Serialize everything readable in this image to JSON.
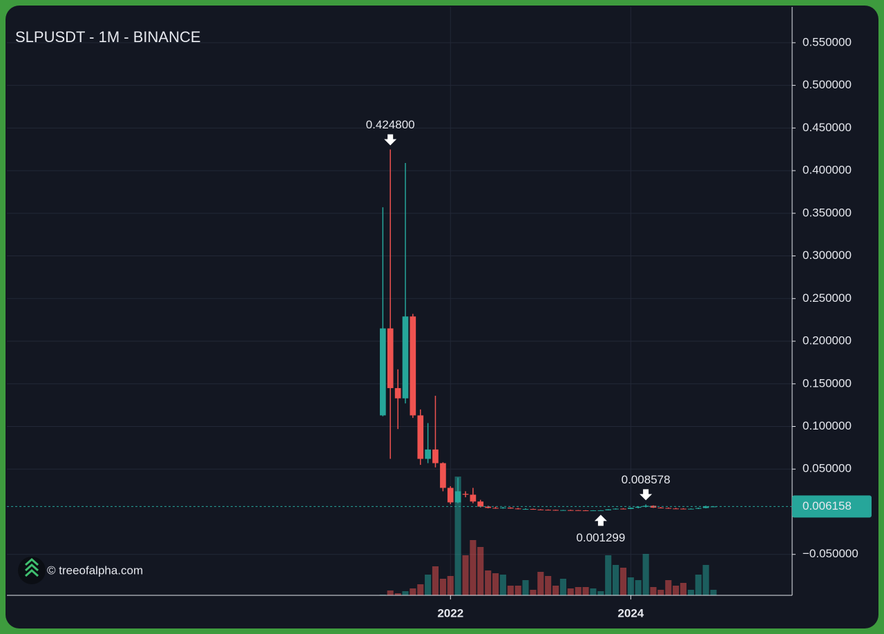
{
  "chart_data": {
    "type": "candlestick",
    "title": "SLPUSDT - 1M - BINANCE",
    "watermark": "© treeofalpha.com",
    "x": [
      2021.25,
      2021.333,
      2021.417,
      2021.5,
      2021.583,
      2021.667,
      2021.75,
      2021.833,
      2021.917,
      2022,
      2022.083,
      2022.167,
      2022.25,
      2022.333,
      2022.417,
      2022.5,
      2022.583,
      2022.667,
      2022.75,
      2022.833,
      2022.917,
      2023,
      2023.083,
      2023.167,
      2023.25,
      2023.333,
      2023.417,
      2023.5,
      2023.583,
      2023.667,
      2023.75,
      2023.833,
      2023.917,
      2024,
      2024.083,
      2024.167,
      2024.25,
      2024.333,
      2024.417,
      2024.5,
      2024.583,
      2024.667,
      2024.75,
      2024.833,
      2024.917
    ],
    "open": [
      0.113,
      0.215,
      0.145,
      0.133,
      0.229,
      0.113,
      0.062,
      0.073,
      0.057,
      0.028,
      0.011,
      0.021,
      0.02,
      0.012,
      0.006,
      0.0045,
      0.0042,
      0.0048,
      0.0038,
      0.003,
      0.0032,
      0.0026,
      0.0023,
      0.0021,
      0.0017,
      0.0019,
      0.0018,
      0.0016,
      0.0015,
      0.0016,
      0.0017,
      0.0028,
      0.0036,
      0.0033,
      0.0047,
      0.0058,
      0.007,
      0.0048,
      0.0044,
      0.0038,
      0.0036,
      0.0033,
      0.0035,
      0.0044,
      0.0059
    ],
    "high": [
      0.357,
      0.4248,
      0.167,
      0.409,
      0.232,
      0.12,
      0.104,
      0.136,
      0.058,
      0.03,
      0.04,
      0.024,
      0.028,
      0.014,
      0.007,
      0.006,
      0.0058,
      0.0052,
      0.0045,
      0.004,
      0.0036,
      0.0031,
      0.0027,
      0.0024,
      0.0022,
      0.0024,
      0.002,
      0.0019,
      0.0018,
      0.0019,
      0.003,
      0.004,
      0.0042,
      0.005,
      0.0062,
      0.008578,
      0.0075,
      0.0056,
      0.005,
      0.0046,
      0.0042,
      0.004,
      0.0048,
      0.0072,
      0.0066
    ],
    "low": [
      0.112,
      0.062,
      0.097,
      0.127,
      0.11,
      0.055,
      0.057,
      0.052,
      0.024,
      0.009,
      0.01,
      0.017,
      0.01,
      0.005,
      0.004,
      0.0035,
      0.0036,
      0.0036,
      0.0028,
      0.0025,
      0.0024,
      0.0021,
      0.0019,
      0.0015,
      0.0014,
      0.0017,
      0.0015,
      0.0014,
      0.0014,
      0.001299,
      0.0016,
      0.0026,
      0.003,
      0.0031,
      0.004,
      0.005,
      0.0045,
      0.004,
      0.0036,
      0.0033,
      0.003,
      0.0029,
      0.0032,
      0.004,
      0.0057
    ],
    "close": [
      0.215,
      0.145,
      0.133,
      0.229,
      0.113,
      0.062,
      0.073,
      0.057,
      0.028,
      0.011,
      0.024,
      0.02,
      0.012,
      0.006,
      0.0045,
      0.0042,
      0.0048,
      0.0038,
      0.003,
      0.0032,
      0.0026,
      0.0023,
      0.0021,
      0.0017,
      0.0019,
      0.0018,
      0.0016,
      0.0015,
      0.0016,
      0.0017,
      0.0028,
      0.0036,
      0.0033,
      0.0047,
      0.0058,
      0.007,
      0.0048,
      0.0044,
      0.0038,
      0.0036,
      0.0033,
      0.0035,
      0.0044,
      0.0062,
      0.006158
    ],
    "volume": [
      1,
      7,
      3,
      6,
      10,
      16,
      30,
      42,
      24,
      28,
      172,
      58,
      80,
      70,
      36,
      32,
      30,
      14,
      14,
      22,
      8,
      34,
      28,
      14,
      24,
      10,
      12,
      12,
      10,
      6,
      58,
      44,
      40,
      26,
      22,
      60,
      12,
      8,
      22,
      14,
      18,
      8,
      30,
      44,
      8
    ],
    "up_color": "#26a69a",
    "down_color": "#ef5350",
    "xlim": [
      2017.08,
      2025.79
    ],
    "ylim": [
      -0.098,
      0.592
    ],
    "xticks": [
      2022,
      2024
    ],
    "yticks": [
      {
        "value": 0.55,
        "label": "0.550000"
      },
      {
        "value": 0.5,
        "label": "0.500000"
      },
      {
        "value": 0.45,
        "label": "0.450000"
      },
      {
        "value": 0.4,
        "label": "0.400000"
      },
      {
        "value": 0.35,
        "label": "0.350000"
      },
      {
        "value": 0.3,
        "label": "0.300000"
      },
      {
        "value": 0.25,
        "label": "0.250000"
      },
      {
        "value": 0.2,
        "label": "0.200000"
      },
      {
        "value": 0.15,
        "label": "0.150000"
      },
      {
        "value": 0.1,
        "label": "0.100000"
      },
      {
        "value": 0.05,
        "label": "0.050000"
      },
      {
        "value": -0.05,
        "label": "−0.050000"
      }
    ],
    "grid": true,
    "last_price": {
      "value": 0.006158,
      "label": "0.006158"
    },
    "annotations": [
      {
        "value": 0.4248,
        "label": "0.424800",
        "position": "above"
      },
      {
        "value": 0.008578,
        "label": "0.008578",
        "position": "above"
      },
      {
        "value": 0.001299,
        "label": "0.001299",
        "position": "below"
      }
    ]
  }
}
